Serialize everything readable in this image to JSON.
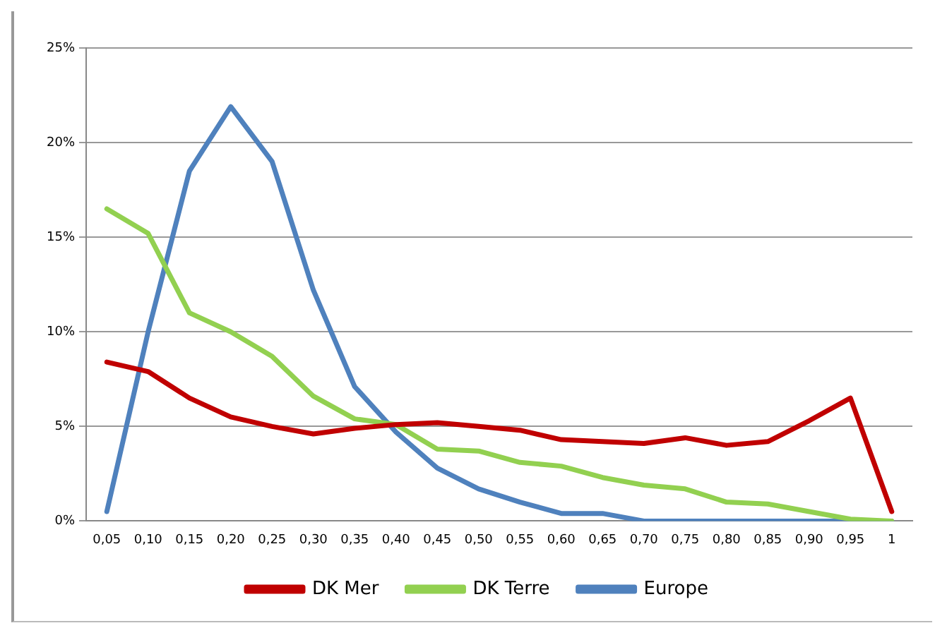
{
  "chart_data": {
    "type": "line",
    "categories": [
      "0,05",
      "0,10",
      "0,15",
      "0,20",
      "0,25",
      "0,30",
      "0,35",
      "0,40",
      "0,45",
      "0,50",
      "0,55",
      "0,60",
      "0,65",
      "0,70",
      "0,75",
      "0,80",
      "0,85",
      "0,90",
      "0,95",
      "1"
    ],
    "series": [
      {
        "name": "DK Mer",
        "color": "#c00000",
        "values": [
          8.4,
          7.9,
          6.5,
          5.5,
          5.0,
          4.6,
          4.9,
          5.1,
          5.2,
          5.0,
          4.8,
          4.3,
          4.2,
          4.1,
          4.4,
          4.0,
          4.2,
          5.3,
          6.5,
          0.5
        ]
      },
      {
        "name": "DK Terre",
        "color": "#92d050",
        "values": [
          16.5,
          15.2,
          11.0,
          10.0,
          8.7,
          6.6,
          5.4,
          5.1,
          3.8,
          3.7,
          3.1,
          2.9,
          2.3,
          1.9,
          1.7,
          1.0,
          0.9,
          0.5,
          0.1,
          0
        ]
      },
      {
        "name": "Europe",
        "color": "#4f81bd",
        "values": [
          0.5,
          10.0,
          18.5,
          21.9,
          19.0,
          12.2,
          7.1,
          4.7,
          2.8,
          1.7,
          1.0,
          0.4,
          0.4,
          0,
          0,
          0,
          0,
          0,
          0,
          0
        ]
      }
    ],
    "ylim": [
      0,
      25
    ],
    "yticks": [
      {
        "value": 0,
        "label": "0%"
      },
      {
        "value": 5,
        "label": "5%"
      },
      {
        "value": 10,
        "label": "10%"
      },
      {
        "value": 15,
        "label": "15%"
      },
      {
        "value": 20,
        "label": "20%"
      },
      {
        "value": 25,
        "label": "25%"
      }
    ],
    "grid": "y",
    "legend": "bottom",
    "marker": "none",
    "line_style": "solid"
  }
}
